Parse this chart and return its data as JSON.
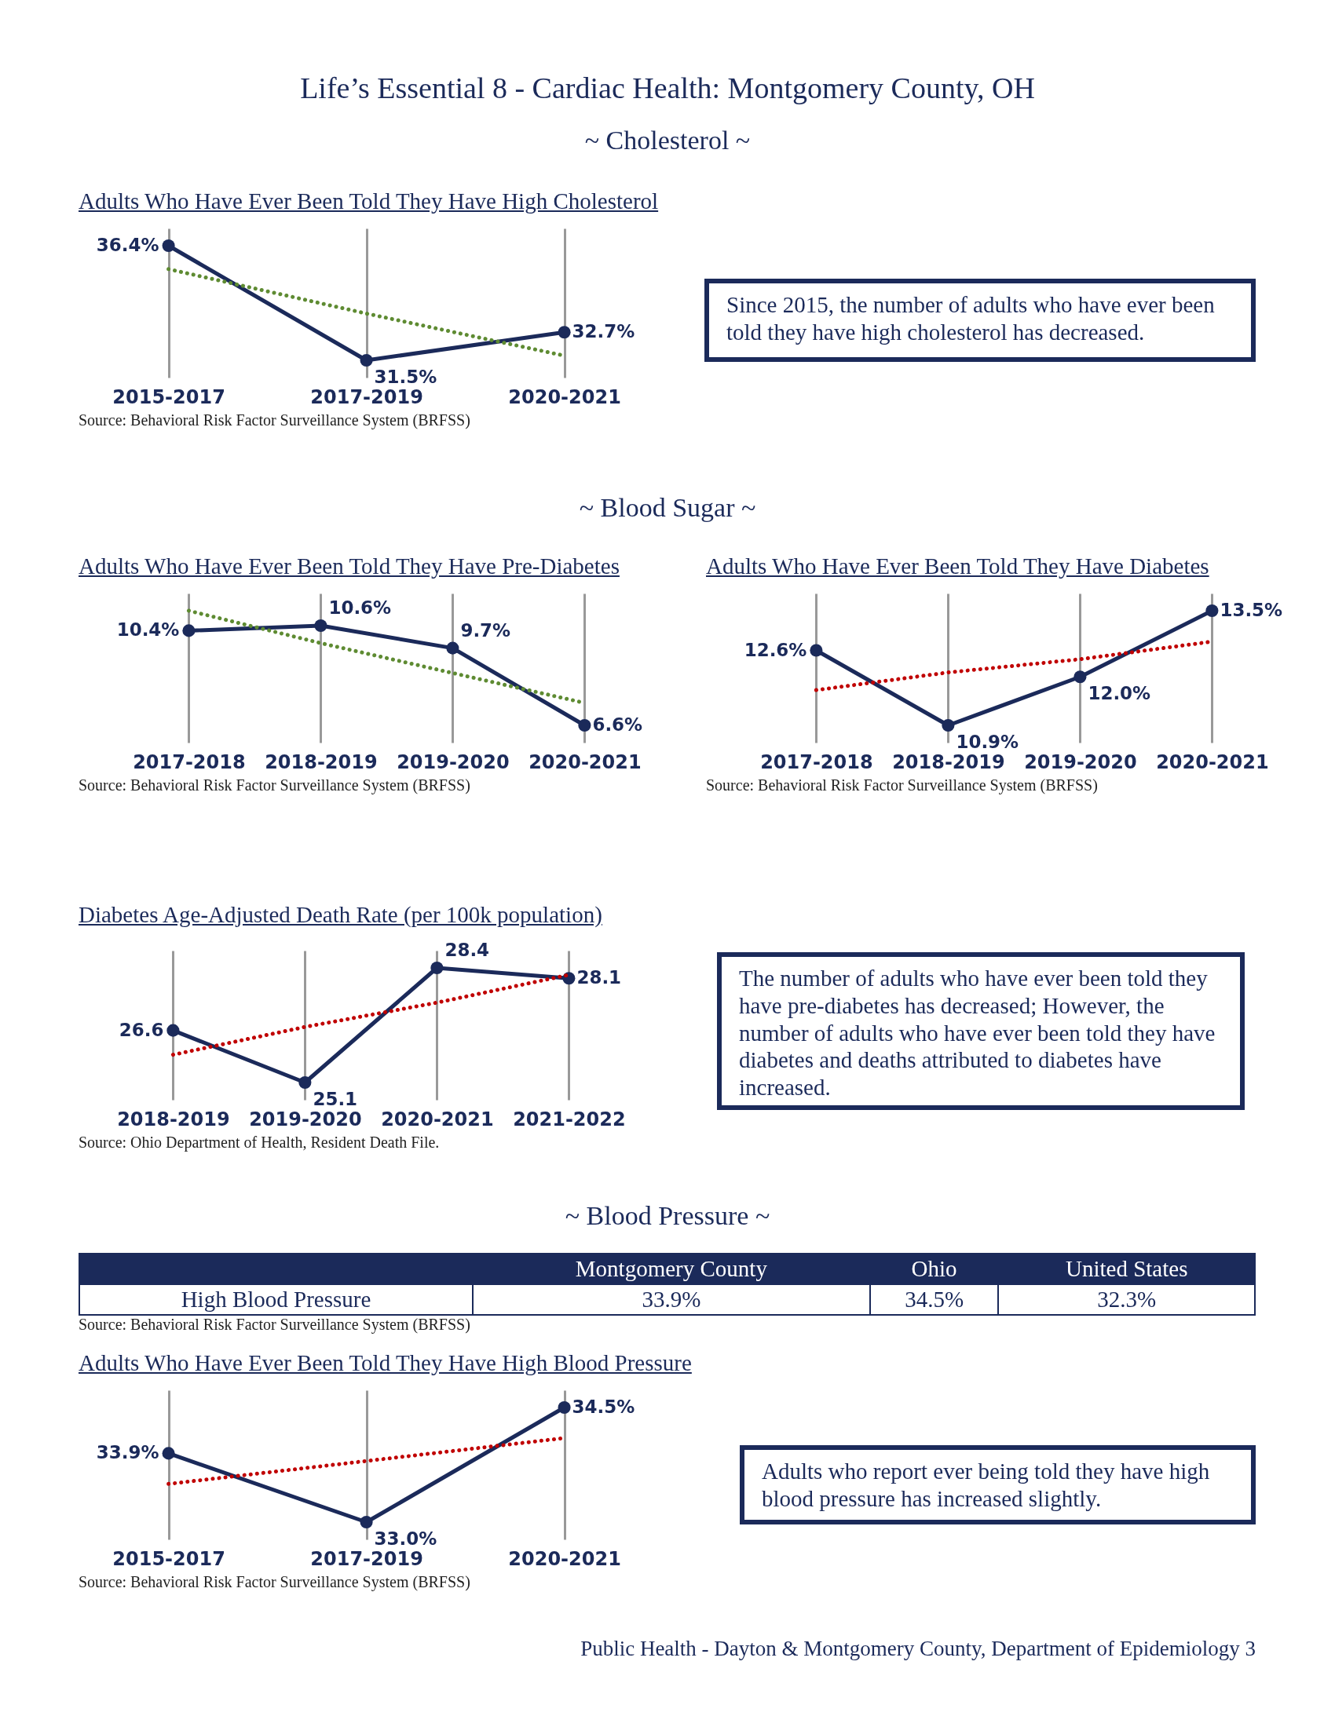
{
  "chart_data": [
    {
      "type": "other",
      "title": "Life’s Essential 8 - Cardiac Health: Montgomery County, OH"
    },
    {
      "type": "other",
      "title": "~ Cholesterol ~"
    },
    {
      "type": "line",
      "title": "Adults Who Have Ever Been Told They Have High Cholesterol",
      "categories": [
        "2015-2017",
        "2017-2019",
        "2020-2021"
      ],
      "grid": "x",
      "marker": "circle",
      "series": [
        {
          "color": "#1b2a5a",
          "values": [
            36.4,
            31.5,
            32.7
          ],
          "value_labels": [
            "36.4%",
            "31.5%",
            "32.7%"
          ]
        },
        {
          "type": "line",
          "color": "#5e8b32",
          "line_style": "dotted",
          "marker": "none",
          "values": [
            35.4,
            33.5,
            31.7
          ]
        }
      ],
      "annotations": [
        "Source: Behavioral Risk Factor Surveillance System (BRFSS)"
      ]
    },
    {
      "type": "other",
      "annotations": [
        "Since 2015, the number of adults who have ever been told they have high cholesterol has decreased."
      ]
    },
    {
      "type": "other",
      "title": "~ Blood Sugar ~"
    },
    {
      "type": "line",
      "title": "Adults Who Have Ever Been Told They Have Pre-Diabetes",
      "categories": [
        "2017-2018",
        "2018-2019",
        "2019-2020",
        "2020-2021"
      ],
      "grid": "x",
      "marker": "circle",
      "series": [
        {
          "color": "#1b2a5a",
          "values": [
            10.4,
            10.6,
            9.7,
            6.6
          ],
          "value_labels": [
            "10.4%",
            "10.6%",
            "9.7%",
            "6.6%"
          ]
        },
        {
          "type": "line",
          "color": "#5e8b32",
          "line_style": "dotted",
          "marker": "none",
          "values": [
            11.2,
            9.9,
            8.7,
            7.5
          ]
        }
      ],
      "annotations": [
        "Source: Behavioral Risk Factor Surveillance System (BRFSS)"
      ]
    },
    {
      "type": "line",
      "title": "Adults Who Have Ever Been Told They Have Diabetes",
      "categories": [
        "2017-2018",
        "2018-2019",
        "2019-2020",
        "2020-2021"
      ],
      "grid": "x",
      "marker": "circle",
      "series": [
        {
          "color": "#1b2a5a",
          "values": [
            12.6,
            10.9,
            12.0,
            13.5
          ],
          "value_labels": [
            "12.6%",
            "10.9%",
            "12.0%",
            "13.5%"
          ]
        },
        {
          "type": "line",
          "color": "#c00000",
          "line_style": "dotted",
          "marker": "none",
          "values": [
            11.7,
            12.1,
            12.4,
            12.8
          ]
        }
      ],
      "annotations": [
        "Source: Behavioral Risk Factor Surveillance System (BRFSS)"
      ]
    },
    {
      "type": "line",
      "title": "Diabetes Age-Adjusted Death Rate (per 100k population)",
      "categories": [
        "2018-2019",
        "2019-2020",
        "2020-2021",
        "2021-2022"
      ],
      "grid": "x",
      "marker": "circle",
      "series": [
        {
          "color": "#1b2a5a",
          "values": [
            26.6,
            25.1,
            28.4,
            28.1
          ],
          "value_labels": [
            "26.6",
            "25.1",
            "28.4",
            "28.1"
          ]
        },
        {
          "type": "line",
          "color": "#c00000",
          "line_style": "dotted",
          "marker": "none",
          "values": [
            25.9,
            26.7,
            27.4,
            28.2
          ]
        }
      ],
      "annotations": [
        "Source: Ohio Department of Health, Resident Death File."
      ]
    },
    {
      "type": "other",
      "annotations": [
        "The number of adults who have ever been told they have pre-diabetes has decreased; However, the number of adults who have ever been told they have diabetes and deaths attributed to diabetes have increased."
      ]
    },
    {
      "type": "other",
      "title": "~ Blood Pressure ~"
    },
    {
      "type": "other",
      "categories": [
        "Montgomery County",
        "Ohio",
        "United States"
      ],
      "series": [
        {
          "name": "High Blood Pressure",
          "values": [
            33.9,
            34.5,
            32.3
          ],
          "value_labels": [
            "33.9%",
            "34.5%",
            "32.3%"
          ]
        }
      ],
      "annotations": [
        "Source: Behavioral Risk Factor Surveillance System (BRFSS)"
      ]
    },
    {
      "type": "line",
      "title": "Adults Who Have Ever Been Told They Have High Blood Pressure",
      "categories": [
        "2015-2017",
        "2017-2019",
        "2020-2021"
      ],
      "grid": "x",
      "marker": "circle",
      "series": [
        {
          "color": "#1b2a5a",
          "values": [
            33.9,
            33.0,
            34.5
          ],
          "value_labels": [
            "33.9%",
            "33.0%",
            "34.5%"
          ]
        },
        {
          "type": "line",
          "color": "#c00000",
          "line_style": "dotted",
          "marker": "none",
          "values": [
            33.5,
            33.8,
            34.1
          ]
        }
      ],
      "annotations": [
        "Source: Behavioral Risk Factor Surveillance System (BRFSS)"
      ]
    },
    {
      "type": "other",
      "annotations": [
        "Adults who report ever being told they have high blood pressure has increased slightly."
      ]
    },
    {
      "type": "other",
      "annotations": [
        "Public Health - Dayton & Montgomery County, Department of Epidemiology 3"
      ]
    }
  ]
}
